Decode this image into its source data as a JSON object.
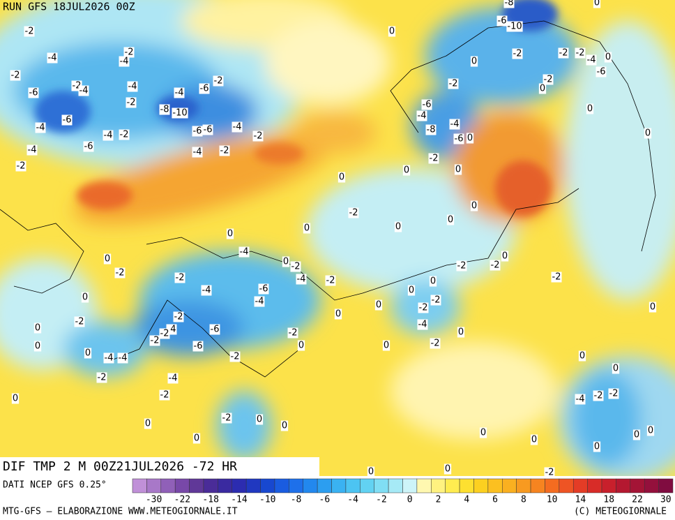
{
  "header": {
    "run": "RUN GFS 18JUL2026 00Z"
  },
  "map": {
    "title": "DIF TMP 2 M 00Z21JUL2026 -72 HR",
    "contour_labels": [
      -2,
      -4,
      -2,
      -4,
      -2,
      -2,
      -4,
      -6,
      -4,
      -2,
      -4,
      -6,
      -2,
      -8,
      -10,
      -6,
      -4,
      -4,
      -6,
      -4,
      -2,
      -6,
      -6,
      -4,
      -4,
      -2,
      -2,
      -2,
      0,
      0,
      -2,
      -2,
      -2,
      -4,
      -6,
      0,
      -2,
      0,
      -10,
      -6,
      0,
      0,
      -2,
      -6,
      -4,
      -8,
      -4,
      -6,
      0,
      -2,
      0,
      0,
      0,
      -2,
      0,
      0,
      0,
      0,
      0,
      -4,
      0,
      -2,
      -4,
      -2,
      -2,
      -4,
      -6,
      -4,
      0,
      -2,
      0,
      -2,
      0,
      0,
      0,
      -4,
      -4,
      -2,
      -2,
      -4,
      -2,
      -2,
      -6,
      -6,
      -2,
      -2,
      0,
      0,
      0,
      0,
      0,
      -2,
      -2,
      -4,
      0,
      -2,
      0,
      -2,
      -2,
      0,
      -2,
      0,
      -4,
      -2,
      0,
      0,
      -2,
      0,
      0,
      0,
      0,
      0,
      0,
      0,
      -4,
      -2,
      -2,
      0,
      0,
      0,
      0,
      0,
      -2,
      0,
      -8
    ]
  },
  "colorbar": {
    "source": "DATI NCEP GFS 0.25°",
    "ticks": [
      -30,
      -22,
      -18,
      -14,
      -10,
      -8,
      -6,
      -4,
      -2,
      0,
      2,
      4,
      6,
      8,
      10,
      14,
      18,
      22,
      30
    ]
  },
  "footer": {
    "left": "MTG-GFS — ELABORAZIONE WWW.METEOGIORNALE.IT",
    "right": "(C) METEOGIORNALE"
  }
}
